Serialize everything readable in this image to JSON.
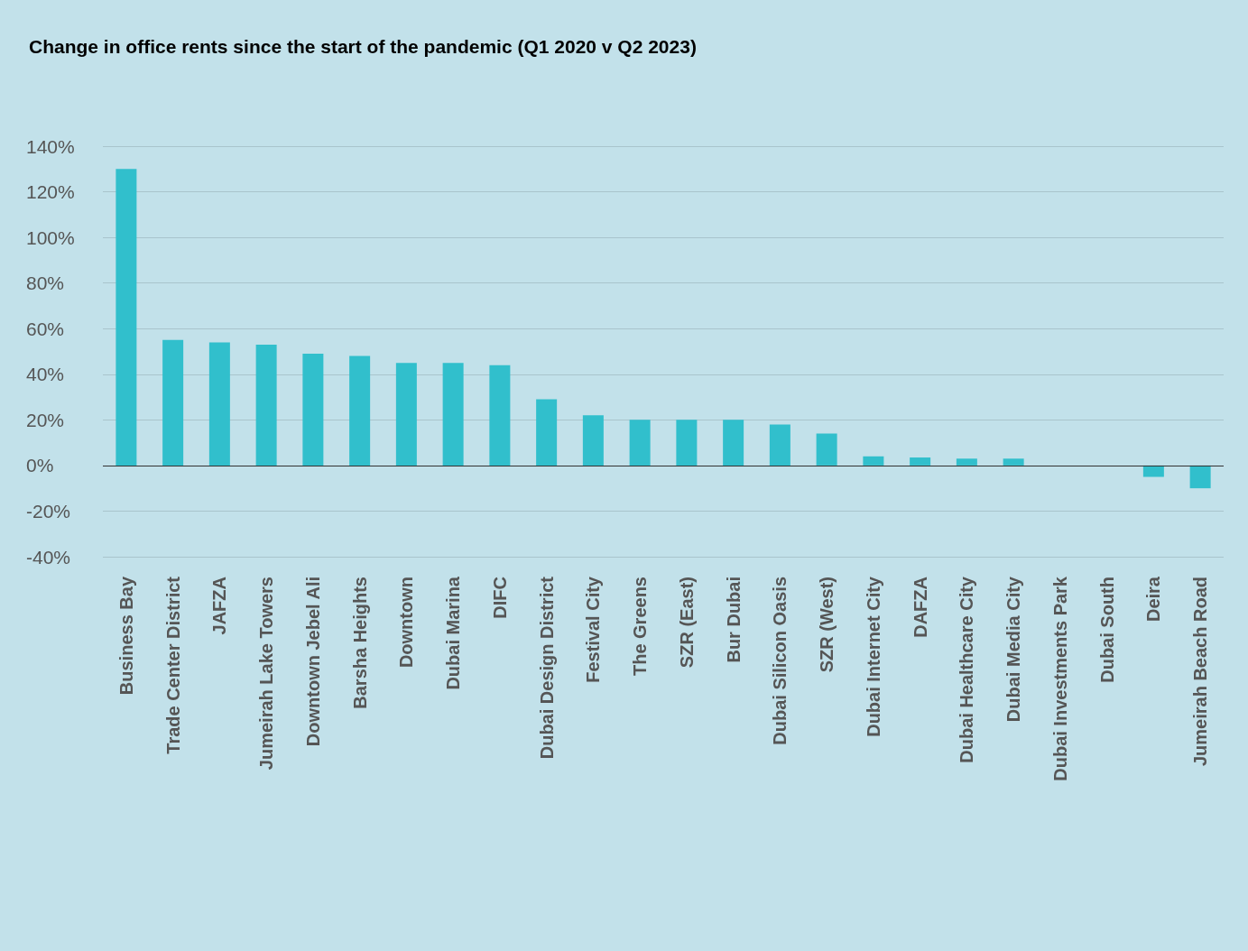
{
  "chart_data": {
    "type": "bar",
    "title": "Change in office rents since the start of the pandemic (Q1 2020 v Q2 2023)",
    "categories": [
      "Business Bay",
      "Trade Center District",
      "JAFZA",
      "Jumeirah Lake Towers",
      "Downtown Jebel Ali",
      "Barsha Heights",
      "Downtown",
      "Dubai Marina",
      "DIFC",
      "Dubai Design District",
      "Festival City",
      "The Greens",
      "SZR (East)",
      "Bur Dubai",
      "Dubai Silicon Oasis",
      "SZR (West)",
      "Dubai Internet City",
      "DAFZA",
      "Dubai Healthcare City",
      "Dubai Media City",
      "Dubai Investments Park",
      "Dubai South",
      "Deira",
      "Jumeirah Beach Road"
    ],
    "values": [
      130,
      55,
      54,
      53,
      49,
      48,
      45,
      45,
      44,
      29,
      22,
      20,
      20,
      20,
      18,
      14,
      4,
      3.5,
      3,
      3,
      0,
      0,
      -5,
      -10
    ],
    "color": "#31bfcc",
    "ylim": [
      -40,
      140
    ],
    "yticks": [
      {
        "value": -40,
        "label": "-40%"
      },
      {
        "value": -20,
        "label": "-20%"
      },
      {
        "value": 0,
        "label": "0%"
      },
      {
        "value": 20,
        "label": "20%"
      },
      {
        "value": 40,
        "label": "40%"
      },
      {
        "value": 60,
        "label": "60%"
      },
      {
        "value": 80,
        "label": "80%"
      },
      {
        "value": 100,
        "label": "100%"
      },
      {
        "value": 120,
        "label": "120%"
      },
      {
        "value": 140,
        "label": "140%"
      }
    ],
    "grid": "y"
  }
}
